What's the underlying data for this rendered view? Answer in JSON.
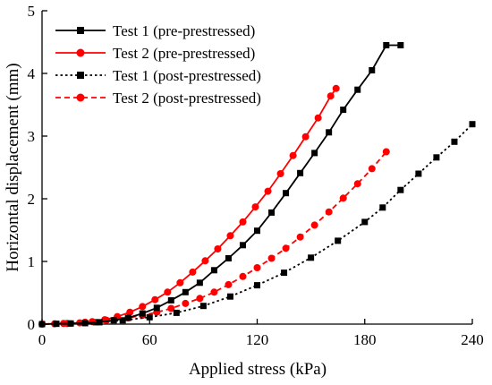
{
  "chart_data": {
    "type": "line",
    "title": "",
    "xlabel": "Applied stress (kPa)",
    "ylabel": "Horizontal displacement (mm)",
    "xlim": [
      0,
      240
    ],
    "ylim": [
      0,
      5
    ],
    "xticks": [
      "0",
      "60",
      "120",
      "180",
      "240"
    ],
    "yticks": [
      "0",
      "1",
      "2",
      "3",
      "4",
      "5"
    ],
    "grid": false,
    "legend_position": "top-left",
    "series": [
      {
        "name": "Test 1 (pre-prestressed)",
        "color": "#000000",
        "line_style": "solid",
        "marker": "square",
        "x": [
          0,
          8,
          16,
          24,
          32,
          40,
          48,
          56,
          64,
          72,
          80,
          88,
          96,
          104,
          112,
          120,
          128,
          136,
          144,
          152,
          160,
          168,
          176,
          184,
          192,
          200
        ],
        "y": [
          0,
          0.005,
          0.01,
          0.015,
          0.03,
          0.06,
          0.1,
          0.17,
          0.26,
          0.38,
          0.51,
          0.66,
          0.86,
          1.05,
          1.26,
          1.49,
          1.78,
          2.09,
          2.41,
          2.73,
          3.06,
          3.42,
          3.74,
          4.05,
          4.45,
          4.45
        ]
      },
      {
        "name": "Test 2 (pre-prestressed)",
        "color": "#ff0000",
        "line_style": "solid",
        "marker": "circle",
        "x": [
          0,
          7,
          14,
          21,
          28,
          35,
          42,
          49,
          56,
          63,
          70,
          77,
          84,
          91,
          98,
          105,
          112,
          119,
          126,
          133,
          140,
          147,
          154,
          161,
          164
        ],
        "y": [
          0,
          0.005,
          0.01,
          0.02,
          0.04,
          0.07,
          0.12,
          0.19,
          0.28,
          0.39,
          0.51,
          0.66,
          0.83,
          1.01,
          1.2,
          1.41,
          1.63,
          1.87,
          2.12,
          2.4,
          2.69,
          2.99,
          3.29,
          3.64,
          3.76
        ]
      },
      {
        "name": "Test 1 (post-prestressed)",
        "color": "#000000",
        "line_style": "dotted",
        "marker": "square",
        "x": [
          0,
          15,
          30,
          45,
          60,
          75,
          90,
          105,
          120,
          135,
          150,
          165,
          180,
          190,
          200,
          210,
          220,
          230,
          240
        ],
        "y": [
          0,
          0.01,
          0.03,
          0.06,
          0.11,
          0.18,
          0.29,
          0.44,
          0.62,
          0.82,
          1.06,
          1.33,
          1.63,
          1.86,
          2.14,
          2.4,
          2.66,
          2.91,
          3.19
        ]
      },
      {
        "name": "Test 2 (post-prestressed)",
        "color": "#ff0000",
        "line_style": "dashed",
        "marker": "circle",
        "x": [
          0,
          12,
          24,
          36,
          48,
          56,
          64,
          72,
          80,
          88,
          96,
          104,
          112,
          120,
          128,
          136,
          144,
          152,
          160,
          168,
          176,
          184,
          192
        ],
        "y": [
          0,
          0.01,
          0.03,
          0.06,
          0.1,
          0.14,
          0.19,
          0.25,
          0.33,
          0.41,
          0.51,
          0.63,
          0.76,
          0.9,
          1.05,
          1.21,
          1.39,
          1.58,
          1.79,
          2.01,
          2.24,
          2.48,
          2.75
        ]
      }
    ]
  }
}
